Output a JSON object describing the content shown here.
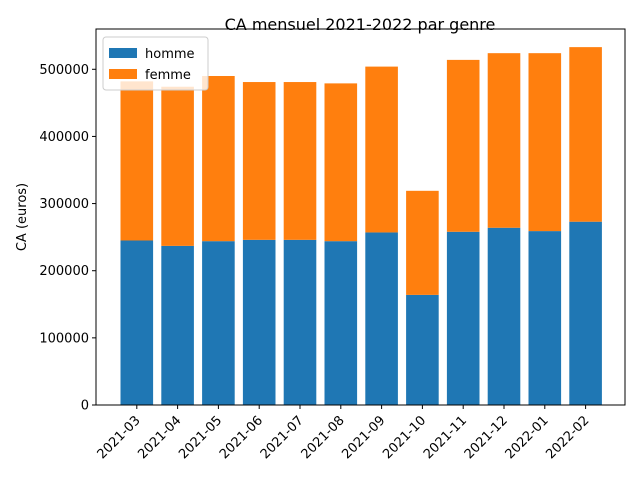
{
  "chart_data": {
    "type": "bar",
    "stacked": true,
    "title": "CA mensuel 2021-2022 par genre",
    "xlabel": "",
    "ylabel": "CA (euros)",
    "ylim": [
      0,
      560000
    ],
    "yticks": [
      0,
      100000,
      200000,
      300000,
      400000,
      500000
    ],
    "ytick_labels": [
      "0",
      "100000",
      "200000",
      "300000",
      "400000",
      "500000"
    ],
    "categories": [
      "2021-03",
      "2021-04",
      "2021-05",
      "2021-06",
      "2021-07",
      "2021-08",
      "2021-09",
      "2021-10",
      "2021-11",
      "2021-12",
      "2022-01",
      "2022-02"
    ],
    "series": [
      {
        "name": "homme",
        "color": "#1f77b4",
        "values": [
          245000,
          237000,
          244000,
          246000,
          246000,
          244000,
          257000,
          164000,
          258000,
          264000,
          259000,
          273000
        ]
      },
      {
        "name": "femme",
        "color": "#ff7f0e",
        "values": [
          237000,
          237000,
          246000,
          235000,
          235000,
          235000,
          247000,
          155000,
          256000,
          260000,
          265000,
          260000
        ]
      }
    ],
    "legend_position": "top-left",
    "grid": false
  }
}
